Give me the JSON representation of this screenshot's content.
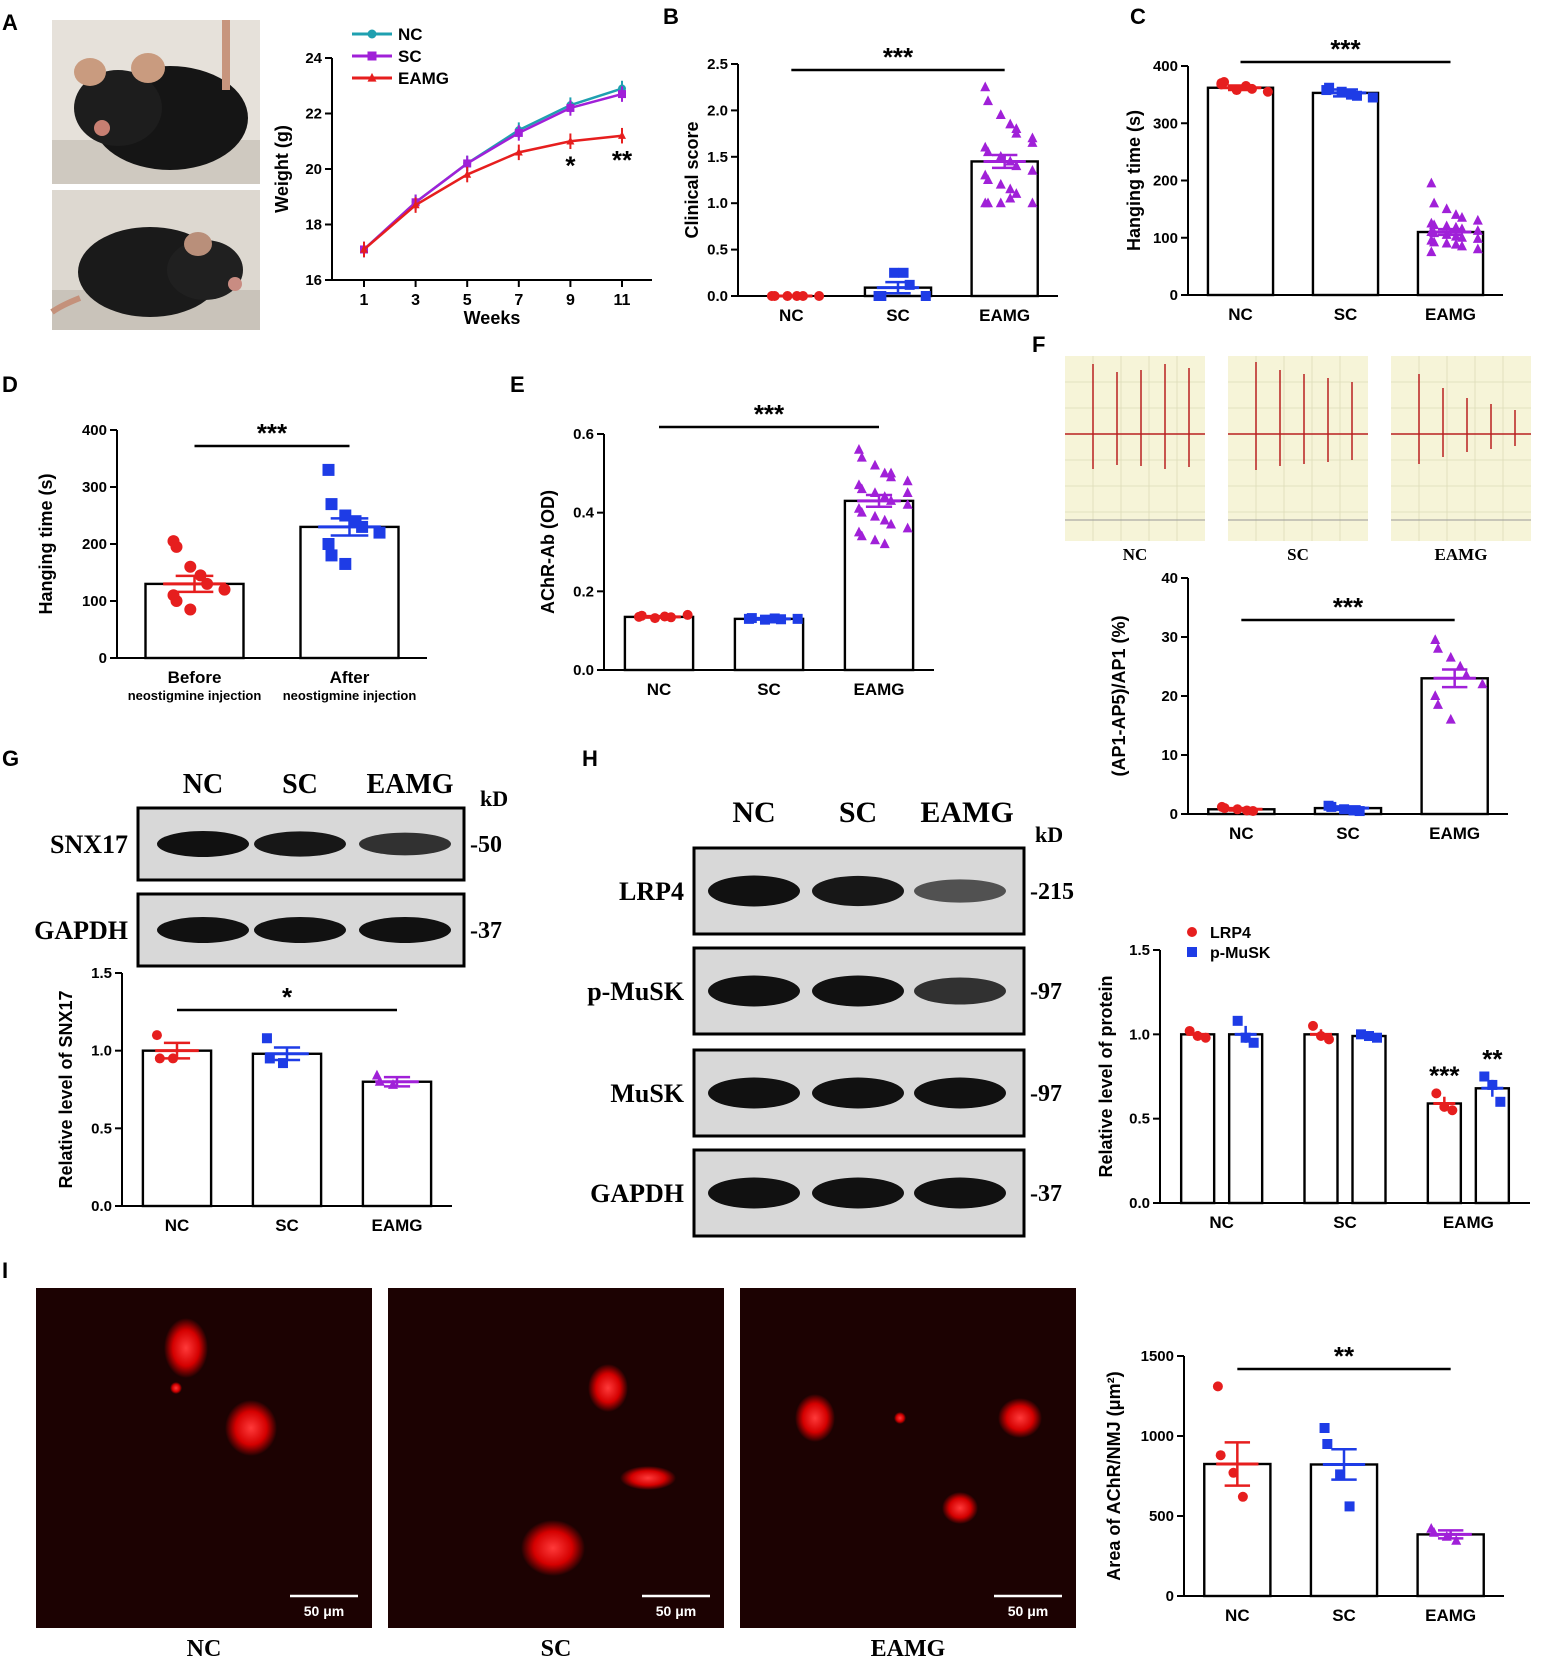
{
  "panels": {
    "A": {
      "letter": "A",
      "photos": [
        "mouse-photo-normal",
        "mouse-photo-eamg"
      ],
      "chart_data": {
        "type": "line",
        "x": [
          1,
          3,
          5,
          7,
          9,
          11
        ],
        "xticks": [
          "1",
          "3",
          "5",
          "7",
          "9",
          "11"
        ],
        "xlabel": "Weeks",
        "ylabel": "Weight (g)",
        "ylim": [
          16,
          24
        ],
        "yticks": [
          "16",
          "18",
          "20",
          "22",
          "24"
        ],
        "series": [
          {
            "name": "NC",
            "color": "#1fa0b0",
            "marker": "circle",
            "values": [
              17.1,
              18.8,
              20.2,
              21.4,
              22.3,
              22.9
            ]
          },
          {
            "name": "SC",
            "color": "#a020d8",
            "marker": "square",
            "values": [
              17.1,
              18.8,
              20.2,
              21.3,
              22.2,
              22.7
            ]
          },
          {
            "name": "EAMG",
            "color": "#e61e1e",
            "marker": "triangle",
            "values": [
              17.1,
              18.7,
              19.8,
              20.6,
              21.0,
              21.2
            ]
          }
        ],
        "legend": "top-left",
        "annotations": [
          {
            "x": 9,
            "text": "*"
          },
          {
            "x": 11,
            "text": "**"
          }
        ]
      }
    },
    "B": {
      "letter": "B",
      "chart_data": {
        "type": "bar",
        "categories": [
          "NC",
          "SC",
          "EAMG"
        ],
        "values": [
          0.0,
          0.09,
          1.45
        ],
        "errors": [
          0.0,
          0.06,
          0.07
        ],
        "ylabel": "Clinical score",
        "ylim": [
          0,
          2.5
        ],
        "yticks": [
          "0.0",
          "0.5",
          "1.0",
          "1.5",
          "2.0",
          "2.5"
        ],
        "points": [
          [
            0,
            0,
            0,
            0,
            0,
            0
          ],
          [
            0,
            0,
            0.25,
            0.25,
            0.12,
            0
          ],
          [
            2.25,
            2.1,
            1.95,
            1.85,
            1.75,
            1.7,
            1.6,
            1.55,
            1.5,
            1.45,
            1.4,
            1.35,
            1.3,
            1.25,
            1.2,
            1.15,
            1.1,
            1.0,
            1.0,
            1.0,
            1.0,
            1.05,
            1.8,
            1.65
          ]
        ],
        "colors": [
          "#e61e1e",
          "#1e3ce6",
          "#a020d8"
        ],
        "markers": [
          "circle",
          "square",
          "triangle"
        ],
        "significance": [
          {
            "from": 0,
            "to": 2,
            "text": "***"
          }
        ]
      }
    },
    "C": {
      "letter": "C",
      "chart_data": {
        "type": "bar",
        "categories": [
          "NC",
          "SC",
          "EAMG"
        ],
        "values": [
          362,
          353,
          110
        ],
        "errors": [
          4,
          6,
          5
        ],
        "ylabel": "Hanging time (s)",
        "ylim": [
          0,
          400
        ],
        "yticks": [
          "0",
          "100",
          "200",
          "300",
          "400"
        ],
        "points": [
          [
            368,
            372,
            358,
            365,
            360,
            355,
            370
          ],
          [
            358,
            362,
            355,
            350,
            348,
            345
          ],
          [
            195,
            160,
            150,
            140,
            135,
            130,
            125,
            122,
            120,
            118,
            115,
            112,
            110,
            108,
            105,
            102,
            100,
            98,
            95,
            92,
            90,
            88,
            85,
            80,
            75
          ]
        ],
        "colors": [
          "#e61e1e",
          "#1e3ce6",
          "#a020d8"
        ],
        "markers": [
          "circle",
          "square",
          "triangle"
        ],
        "significance": [
          {
            "from": 0,
            "to": 2,
            "text": "***"
          }
        ]
      }
    },
    "D": {
      "letter": "D",
      "chart_data": {
        "type": "bar",
        "categories": [
          "Before",
          "After"
        ],
        "category_sublabels": [
          "neostigmine injection",
          "neostigmine injection"
        ],
        "values": [
          130,
          230
        ],
        "errors": [
          14,
          15
        ],
        "ylabel": "Hanging time (s)",
        "ylim": [
          0,
          400
        ],
        "yticks": [
          "0",
          "100",
          "200",
          "300",
          "400"
        ],
        "points": [
          [
            205,
            195,
            160,
            145,
            130,
            120,
            110,
            100,
            85
          ],
          [
            330,
            270,
            250,
            240,
            230,
            220,
            200,
            180,
            165
          ]
        ],
        "colors": [
          "#e61e1e",
          "#1e3ce6"
        ],
        "markers": [
          "circle",
          "square"
        ],
        "significance": [
          {
            "from": 0,
            "to": 1,
            "text": "***"
          }
        ]
      }
    },
    "E": {
      "letter": "E",
      "chart_data": {
        "type": "bar",
        "categories": [
          "NC",
          "SC",
          "EAMG"
        ],
        "values": [
          0.135,
          0.13,
          0.43
        ],
        "errors": [
          0.002,
          0.002,
          0.015
        ],
        "ylabel": "AChR-Ab (OD)",
        "ylim": [
          0,
          0.6
        ],
        "yticks": [
          "0.0",
          "0.2",
          "0.4",
          "0.6"
        ],
        "points": [
          [
            0.135,
            0.138,
            0.132,
            0.136,
            0.134,
            0.14
          ],
          [
            0.13,
            0.132,
            0.128,
            0.131,
            0.129,
            0.13
          ],
          [
            0.56,
            0.54,
            0.52,
            0.5,
            0.49,
            0.48,
            0.47,
            0.46,
            0.45,
            0.44,
            0.43,
            0.42,
            0.41,
            0.4,
            0.39,
            0.38,
            0.37,
            0.36,
            0.35,
            0.34,
            0.33,
            0.32,
            0.5,
            0.45
          ]
        ],
        "colors": [
          "#e61e1e",
          "#1e3ce6",
          "#a020d8"
        ],
        "markers": [
          "circle",
          "square",
          "triangle"
        ],
        "significance": [
          {
            "from": 0,
            "to": 2,
            "text": "***"
          }
        ]
      }
    },
    "F": {
      "letter": "F",
      "trace_labels": [
        "NC",
        "SC",
        "EAMG"
      ],
      "chart_data": {
        "type": "bar",
        "categories": [
          "NC",
          "SC",
          "EAMG"
        ],
        "values": [
          0.8,
          1.0,
          23
        ],
        "errors": [
          0.2,
          0.3,
          1.5
        ],
        "ylabel": "(AP1-AP5)/AP1 (%)",
        "ylim": [
          0,
          40
        ],
        "yticks": [
          "0",
          "10",
          "20",
          "30",
          "40"
        ],
        "points": [
          [
            1.2,
            1.0,
            0.8,
            0.6,
            0.5
          ],
          [
            1.4,
            1.2,
            0.8,
            0.6,
            0.5
          ],
          [
            29.5,
            28,
            26.5,
            25,
            23.5,
            22,
            20,
            18.5,
            16
          ]
        ],
        "colors": [
          "#e61e1e",
          "#1e3ce6",
          "#a020d8"
        ],
        "markers": [
          "circle",
          "square",
          "triangle"
        ],
        "significance": [
          {
            "from": 0,
            "to": 2,
            "text": "***"
          }
        ]
      }
    },
    "G": {
      "letter": "G",
      "blot": {
        "lanes": [
          "NC",
          "SC",
          "EAMG"
        ],
        "kd_label": "kD",
        "rows": [
          {
            "label": "SNX17",
            "kd": "-50",
            "intensity": [
              1.0,
              0.95,
              0.75
            ]
          },
          {
            "label": "GAPDH",
            "kd": "-37",
            "intensity": [
              1.0,
              1.0,
              1.0
            ]
          }
        ]
      },
      "chart_data": {
        "type": "bar",
        "categories": [
          "NC",
          "SC",
          "EAMG"
        ],
        "values": [
          1.0,
          0.98,
          0.8
        ],
        "errors": [
          0.05,
          0.04,
          0.03
        ],
        "ylabel": "Relative level of SNX17",
        "ylim": [
          0,
          1.5
        ],
        "yticks": [
          "0.0",
          "0.5",
          "1.0",
          "1.5"
        ],
        "points": [
          [
            1.1,
            0.95,
            0.95
          ],
          [
            1.08,
            0.95,
            0.92
          ],
          [
            0.84,
            0.8,
            0.78
          ]
        ],
        "colors": [
          "#e61e1e",
          "#1e3ce6",
          "#a020d8"
        ],
        "markers": [
          "circle",
          "square",
          "triangle"
        ],
        "significance": [
          {
            "from": 0,
            "to": 2,
            "text": "*"
          }
        ]
      }
    },
    "H": {
      "letter": "H",
      "blot": {
        "lanes": [
          "NC",
          "SC",
          "EAMG"
        ],
        "kd_label": "kD",
        "rows": [
          {
            "label": "LRP4",
            "kd": "-215",
            "intensity": [
              1.0,
              0.95,
              0.5
            ]
          },
          {
            "label": "p-MuSK",
            "kd": "-97",
            "intensity": [
              1.0,
              1.0,
              0.75
            ]
          },
          {
            "label": "MuSK",
            "kd": "-97",
            "intensity": [
              1.0,
              1.0,
              1.0
            ]
          },
          {
            "label": "GAPDH",
            "kd": "-37",
            "intensity": [
              1.0,
              1.0,
              1.0
            ]
          }
        ]
      },
      "chart_data": {
        "type": "bar",
        "categories": [
          "NC",
          "SC",
          "EAMG"
        ],
        "series": [
          {
            "name": "LRP4",
            "color": "#e61e1e",
            "marker": "circle",
            "values": [
              1.0,
              1.0,
              0.59
            ],
            "errors": [
              0.02,
              0.03,
              0.04
            ],
            "points": [
              [
                1.02,
                0.99,
                0.98
              ],
              [
                1.05,
                0.99,
                0.97
              ],
              [
                0.65,
                0.57,
                0.55
              ]
            ]
          },
          {
            "name": "p-MuSK",
            "color": "#1e3ce6",
            "marker": "square",
            "values": [
              1.0,
              0.99,
              0.68
            ],
            "errors": [
              0.05,
              0.01,
              0.05
            ],
            "points": [
              [
                1.08,
                0.98,
                0.95
              ],
              [
                1.0,
                0.99,
                0.98
              ],
              [
                0.75,
                0.7,
                0.6
              ]
            ]
          }
        ],
        "ylabel": "Relative level of protein",
        "ylim": [
          0,
          1.5
        ],
        "yticks": [
          "0.0",
          "0.5",
          "1.0",
          "1.5"
        ],
        "legend": "top-left",
        "annotations": [
          {
            "category": 2,
            "series": 0,
            "text": "***"
          },
          {
            "category": 2,
            "series": 1,
            "text": "**"
          }
        ]
      }
    },
    "I": {
      "letter": "I",
      "images": [
        {
          "label": "NC",
          "scale": "50 μm"
        },
        {
          "label": "SC",
          "scale": "50 μm"
        },
        {
          "label": "EAMG",
          "scale": "50 μm"
        }
      ],
      "chart_data": {
        "type": "bar",
        "categories": [
          "NC",
          "SC",
          "EAMG"
        ],
        "values": [
          825,
          822,
          385
        ],
        "errors": [
          135,
          95,
          25
        ],
        "ylabel": "Area of AChR/NMJ (μm²)",
        "ylim": [
          0,
          1500
        ],
        "yticks": [
          "0",
          "500",
          "1000",
          "1500"
        ],
        "points": [
          [
            1310,
            880,
            770,
            620
          ],
          [
            1050,
            950,
            760,
            560
          ],
          [
            420,
            395,
            370,
            345
          ]
        ],
        "colors": [
          "#e61e1e",
          "#1e3ce6",
          "#a020d8"
        ],
        "markers": [
          "circle",
          "square",
          "triangle"
        ],
        "significance": [
          {
            "from": 0,
            "to": 2,
            "text": "**"
          }
        ]
      }
    }
  }
}
